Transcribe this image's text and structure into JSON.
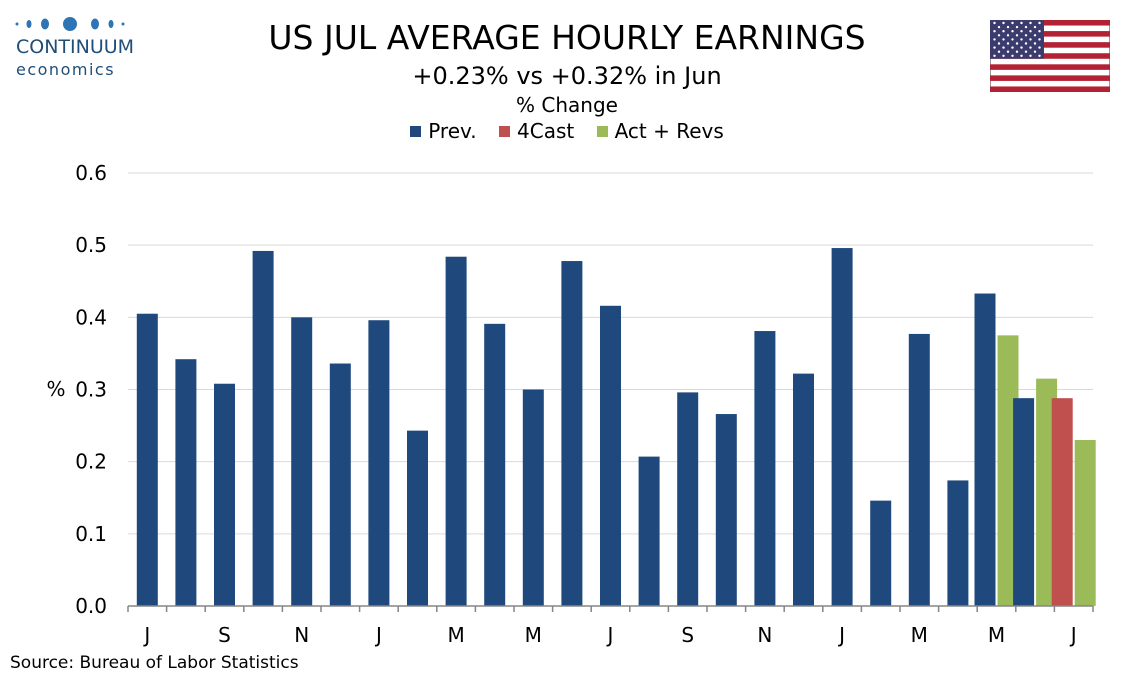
{
  "logo": {
    "name": "CONTINUUM",
    "sub": "economics"
  },
  "header": {
    "title": "US JUL AVERAGE HOURLY EARNINGS",
    "subtitle": "+0.23% vs +0.32% in Jun",
    "units": "% Change"
  },
  "legend": [
    {
      "label": "Prev.",
      "color": "#1f497d"
    },
    {
      "label": "4Cast",
      "color": "#c0504d"
    },
    {
      "label": "Act + Revs",
      "color": "#9bbb59"
    }
  ],
  "source": "Source: Bureau of Labor Statistics",
  "chart_data": {
    "type": "bar",
    "ylabel": "%",
    "ylim": [
      0,
      0.6
    ],
    "yticks": [
      "0.0",
      "0.1",
      "0.2",
      "0.3",
      "0.4",
      "0.5",
      "0.6"
    ],
    "grid": true,
    "legend_position": "top",
    "x_tick_labels": [
      "J",
      "",
      "S",
      "",
      "N",
      "",
      "J",
      "",
      "M",
      "",
      "M",
      "",
      "J",
      "",
      "S",
      "",
      "N",
      "",
      "J",
      "",
      "M",
      "",
      "M",
      "",
      "J"
    ],
    "series": [
      {
        "name": "Prev.",
        "color": "#1f497d",
        "values": [
          0.405,
          0.342,
          0.308,
          0.492,
          0.4,
          0.336,
          0.396,
          0.243,
          0.484,
          0.391,
          0.3,
          0.478,
          0.416,
          0.207,
          0.296,
          0.266,
          0.381,
          0.322,
          0.496,
          0.146,
          0.377,
          0.174,
          0.433,
          0.288,
          null
        ]
      },
      {
        "name": "4Cast",
        "color": "#c0504d",
        "values": [
          null,
          null,
          null,
          null,
          null,
          null,
          null,
          null,
          null,
          null,
          null,
          null,
          null,
          null,
          null,
          null,
          null,
          null,
          null,
          null,
          null,
          null,
          null,
          null,
          0.288
        ]
      },
      {
        "name": "Act + Revs",
        "color": "#9bbb59",
        "values": [
          null,
          null,
          null,
          null,
          null,
          null,
          null,
          null,
          null,
          null,
          null,
          null,
          null,
          null,
          null,
          null,
          null,
          null,
          null,
          null,
          null,
          null,
          0.375,
          0.315,
          0.23
        ]
      }
    ]
  }
}
